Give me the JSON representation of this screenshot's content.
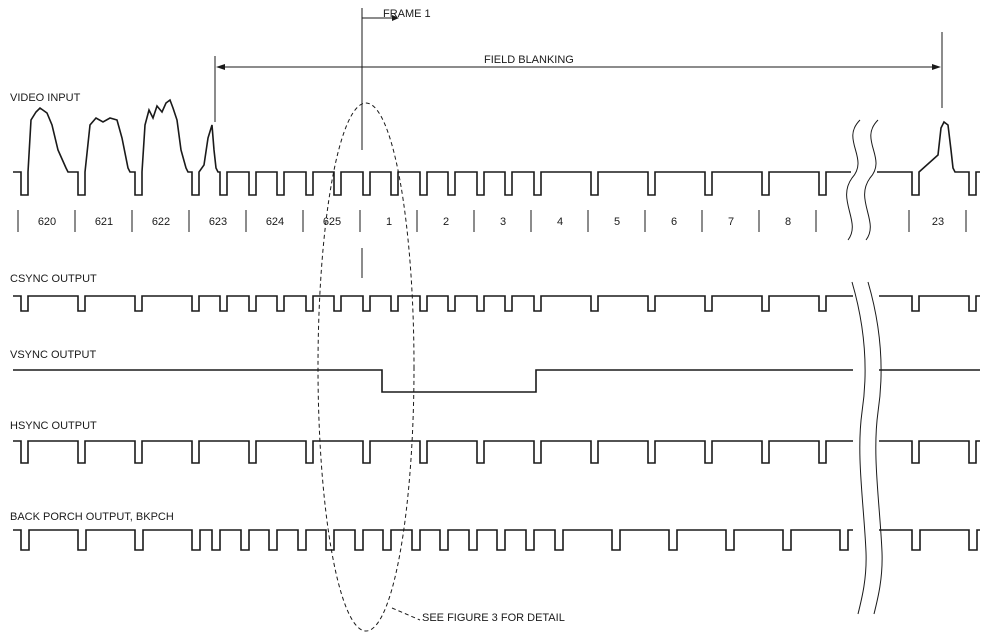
{
  "frame_label": "FRAME 1",
  "field_blanking_label": "FIELD BLANKING",
  "signals": {
    "video_input": "VIDEO INPUT",
    "csync_output": "CSYNC OUTPUT",
    "vsync_output": "VSYNC OUTPUT",
    "hsync_output": "HSYNC OUTPUT",
    "back_porch_output": "BACK PORCH OUTPUT, BKPCH"
  },
  "line_numbers": [
    "620",
    "621",
    "622",
    "623",
    "624",
    "625",
    "1",
    "2",
    "3",
    "4",
    "5",
    "6",
    "7",
    "8",
    "23"
  ],
  "note": "SEE FIGURE 3 FOR DETAIL"
}
